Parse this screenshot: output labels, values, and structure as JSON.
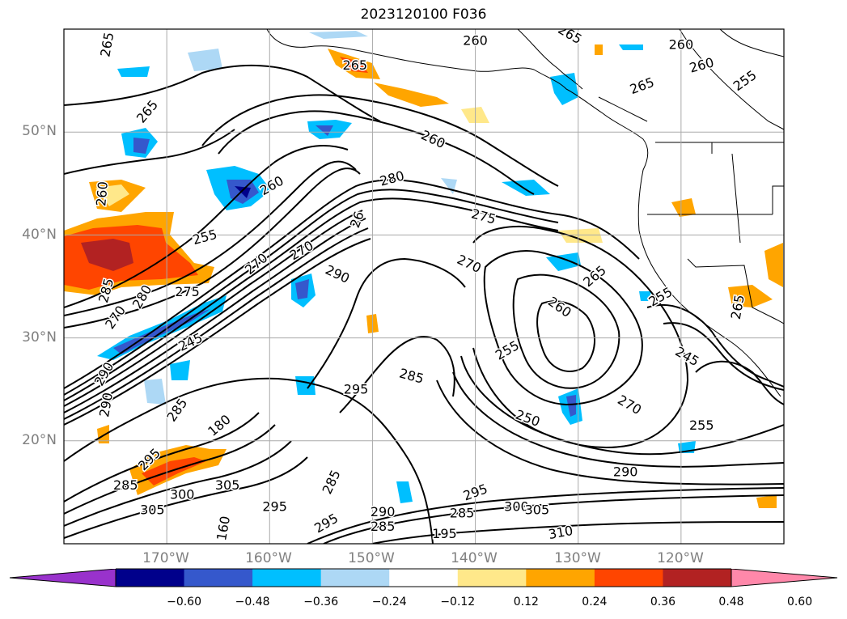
{
  "title": "2023120100 F036",
  "map": {
    "lat_labels": [
      "50°N",
      "40°N",
      "30°N",
      "20°N"
    ],
    "lon_labels": [
      "170°W",
      "160°W",
      "150°W",
      "140°W",
      "130°W",
      "120°W"
    ],
    "contour_labels": [
      {
        "text": "265",
        "lon": -175.8,
        "lat": 58.5,
        "rot": -80
      },
      {
        "text": "265",
        "lon": -151.7,
        "lat": 56.5,
        "rot": 0
      },
      {
        "text": "260",
        "lon": -140.0,
        "lat": 58.9,
        "rot": 0
      },
      {
        "text": "265",
        "lon": -130.8,
        "lat": 59.5,
        "rot": 30
      },
      {
        "text": "260",
        "lon": -120.0,
        "lat": 58.5,
        "rot": 0
      },
      {
        "text": "260",
        "lon": -118.0,
        "lat": 56.5,
        "rot": -15
      },
      {
        "text": "255",
        "lon": -113.8,
        "lat": 55.0,
        "rot": -35
      },
      {
        "text": "265",
        "lon": -123.8,
        "lat": 54.5,
        "rot": -20
      },
      {
        "text": "265",
        "lon": -171.9,
        "lat": 52.0,
        "rot": -50
      },
      {
        "text": "260",
        "lon": -144.1,
        "lat": 49.3,
        "rot": 25
      },
      {
        "text": "280",
        "lon": -148.1,
        "lat": 45.5,
        "rot": -15
      },
      {
        "text": "260",
        "lon": -176.3,
        "lat": 44.0,
        "rot": -85
      },
      {
        "text": "260",
        "lon": -159.8,
        "lat": 44.8,
        "rot": -30
      },
      {
        "text": "275",
        "lon": -139.2,
        "lat": 41.8,
        "rot": 15
      },
      {
        "text": "26",
        "lon": -151.5,
        "lat": 41.5,
        "rot": -70
      },
      {
        "text": "255",
        "lon": -166.3,
        "lat": 39.8,
        "rot": -15
      },
      {
        "text": "270",
        "lon": -156.9,
        "lat": 38.5,
        "rot": -30
      },
      {
        "text": "270",
        "lon": -161.3,
        "lat": 37.2,
        "rot": -40
      },
      {
        "text": "270",
        "lon": -140.6,
        "lat": 37.2,
        "rot": 25
      },
      {
        "text": "265",
        "lon": -128.4,
        "lat": 36.0,
        "rot": -40
      },
      {
        "text": "290",
        "lon": -153.4,
        "lat": 36.2,
        "rot": 25
      },
      {
        "text": "285",
        "lon": -175.9,
        "lat": 34.6,
        "rot": -75
      },
      {
        "text": "280",
        "lon": -172.4,
        "lat": 34.0,
        "rot": -60
      },
      {
        "text": "275",
        "lon": -168.0,
        "lat": 34.5,
        "rot": 0
      },
      {
        "text": "260",
        "lon": -131.8,
        "lat": 33.0,
        "rot": 35
      },
      {
        "text": "255",
        "lon": -122.0,
        "lat": 34.0,
        "rot": -30
      },
      {
        "text": "265",
        "lon": -114.5,
        "lat": 33.0,
        "rot": -80
      },
      {
        "text": "270",
        "lon": -175.0,
        "lat": 32.0,
        "rot": -55
      },
      {
        "text": "245",
        "lon": -167.7,
        "lat": 29.6,
        "rot": -25
      },
      {
        "text": "255",
        "lon": -136.9,
        "lat": 28.8,
        "rot": -30
      },
      {
        "text": "245",
        "lon": -119.4,
        "lat": 28.2,
        "rot": 30
      },
      {
        "text": "290",
        "lon": -176.1,
        "lat": 26.5,
        "rot": -60
      },
      {
        "text": "295",
        "lon": -151.6,
        "lat": 25.0,
        "rot": 0
      },
      {
        "text": "285",
        "lon": -146.2,
        "lat": 26.3,
        "rot": 15
      },
      {
        "text": "290",
        "lon": -175.9,
        "lat": 23.5,
        "rot": -80
      },
      {
        "text": "285",
        "lon": -169.0,
        "lat": 23.0,
        "rot": -55
      },
      {
        "text": "270",
        "lon": -125.0,
        "lat": 23.5,
        "rot": 30
      },
      {
        "text": "250",
        "lon": -134.9,
        "lat": 22.2,
        "rot": 20
      },
      {
        "text": "255",
        "lon": -118.0,
        "lat": 21.5,
        "rot": 0
      },
      {
        "text": "180",
        "lon": -164.9,
        "lat": 21.5,
        "rot": -40
      },
      {
        "text": "295",
        "lon": -171.7,
        "lat": 18.2,
        "rot": -45
      },
      {
        "text": "290",
        "lon": -125.4,
        "lat": 17.0,
        "rot": 0
      },
      {
        "text": "285",
        "lon": -154.0,
        "lat": 16.0,
        "rot": -65
      },
      {
        "text": "285",
        "lon": -174.0,
        "lat": 15.7,
        "rot": 0
      },
      {
        "text": "300",
        "lon": -168.5,
        "lat": 14.8,
        "rot": 0
      },
      {
        "text": "305",
        "lon": -164.1,
        "lat": 15.7,
        "rot": 0
      },
      {
        "text": "295",
        "lon": -140.0,
        "lat": 15.0,
        "rot": -20
      },
      {
        "text": "305",
        "lon": -171.4,
        "lat": 13.3,
        "rot": 0
      },
      {
        "text": "295",
        "lon": -159.5,
        "lat": 13.6,
        "rot": 0
      },
      {
        "text": "300",
        "lon": -136.0,
        "lat": 13.6,
        "rot": 0
      },
      {
        "text": "305",
        "lon": -134.0,
        "lat": 13.3,
        "rot": 0
      },
      {
        "text": "290",
        "lon": -149.0,
        "lat": 13.1,
        "rot": 0
      },
      {
        "text": "285",
        "lon": -141.3,
        "lat": 13.0,
        "rot": 0
      },
      {
        "text": "295",
        "lon": -154.5,
        "lat": 12.0,
        "rot": -30
      },
      {
        "text": "285",
        "lon": -149.0,
        "lat": 11.7,
        "rot": 0
      },
      {
        "text": "195",
        "lon": -143.0,
        "lat": 11.0,
        "rot": 0
      },
      {
        "text": "160",
        "lon": -164.5,
        "lat": 11.5,
        "rot": -80
      },
      {
        "text": "310",
        "lon": -131.7,
        "lat": 11.1,
        "rot": -10
      }
    ]
  },
  "colorbar": {
    "colors": [
      "#9932cc",
      "#00008b",
      "#3558cc",
      "#00bfff",
      "#add8f5",
      "#ffffff",
      "#ffe88a",
      "#ffa500",
      "#ff4500",
      "#b22222",
      "#ff88aa"
    ],
    "tick_labels": [
      "−0.60",
      "−0.48",
      "−0.36",
      "−0.24",
      "−0.12",
      "0.12",
      "0.24",
      "0.36",
      "0.48",
      "0.60"
    ]
  }
}
